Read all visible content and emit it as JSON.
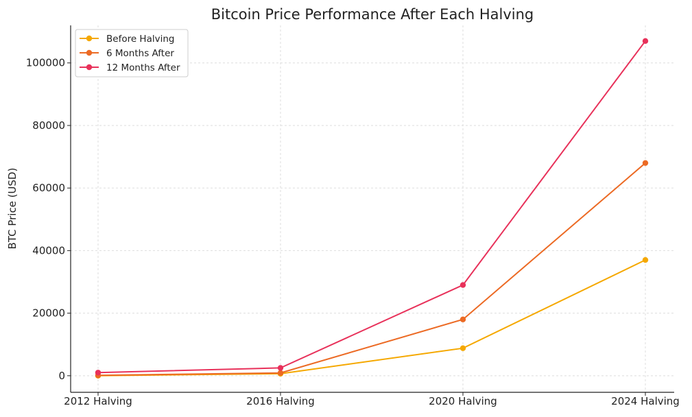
{
  "chart_data": {
    "type": "line",
    "title": "Bitcoin Price Performance After Each Halving",
    "xlabel": "",
    "ylabel": "BTC Price (USD)",
    "categories": [
      "2012 Halving",
      "2016 Halving",
      "2020 Halving",
      "2024 Halving"
    ],
    "ylim": [
      -5300,
      112000
    ],
    "yticks": [
      0,
      20000,
      40000,
      60000,
      80000,
      100000
    ],
    "ytick_labels": [
      "0",
      "20000",
      "40000",
      "60000",
      "80000",
      "100000"
    ],
    "grid": true,
    "legend_position": "top-left",
    "series": [
      {
        "name": "Before Halving",
        "color": "#f5a800",
        "values": [
          12,
          650,
          8800,
          37000
        ]
      },
      {
        "name": "6 Months After",
        "color": "#ec6a24",
        "values": [
          130,
          900,
          18000,
          68000
        ]
      },
      {
        "name": "12 Months After",
        "color": "#e8315a",
        "values": [
          1000,
          2500,
          29000,
          107000
        ]
      }
    ]
  }
}
